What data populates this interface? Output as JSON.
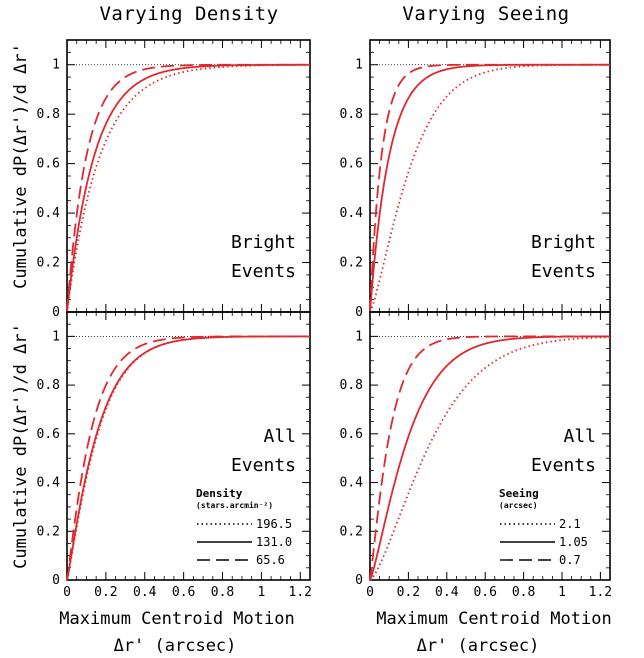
{
  "chart_data": [
    {
      "type": "line",
      "panel": "top-left",
      "title": "Varying Density",
      "ylabel": "Cumulative dP(Δr')/d Δr'",
      "xlabel": "",
      "annotation": [
        "Bright",
        "Events"
      ],
      "xlim": [
        0,
        1.25
      ],
      "ylim": [
        0,
        1.1
      ],
      "x_ticks": [],
      "y_ticks": [
        "0",
        "0.2",
        "0.4",
        "0.6",
        "0.8",
        "1"
      ],
      "reference_line": 1,
      "series": [
        {
          "style": "dotted",
          "color": "#e0282e",
          "scale": 0.17
        },
        {
          "style": "solid",
          "color": "#e0282e",
          "scale": 0.14
        },
        {
          "style": "dashed",
          "color": "#e0282e",
          "scale": 0.1
        }
      ]
    },
    {
      "type": "line",
      "panel": "top-right",
      "title": "Varying Seeing",
      "ylabel": "",
      "xlabel": "",
      "annotation": [
        "Bright",
        "Events"
      ],
      "xlim": [
        0,
        1.25
      ],
      "ylim": [
        0,
        1.1
      ],
      "x_ticks": [],
      "y_ticks": [
        "0",
        "0.2",
        "0.4",
        "0.6",
        "0.8",
        "1"
      ],
      "reference_line": 1,
      "series": [
        {
          "style": "dotted",
          "color": "#e0282e",
          "scale": 0.23,
          "shape": 1.3
        },
        {
          "style": "solid",
          "color": "#e0282e",
          "scale": 0.1
        },
        {
          "style": "dashed",
          "color": "#e0282e",
          "scale": 0.06
        }
      ]
    },
    {
      "type": "line",
      "panel": "bottom-left",
      "title": "",
      "ylabel": "Cumulative dP(Δr')/d Δr'",
      "xlabel": "Maximum Centroid Motion",
      "xlabel2": "Δr' (arcsec)",
      "annotation": [
        "All",
        "Events"
      ],
      "xlim": [
        0,
        1.25
      ],
      "ylim": [
        0,
        1.1
      ],
      "x_ticks": [
        "0",
        "0.2",
        "0.4",
        "0.6",
        "0.8",
        "1",
        "1.2"
      ],
      "y_ticks": [
        "0",
        "0.2",
        "0.4",
        "0.6",
        "0.8",
        "1"
      ],
      "reference_line": 1,
      "legend": {
        "title": "Density",
        "subtitle": "(stars.arcmin⁻²)",
        "entries": [
          {
            "style": "dotted",
            "label": "196.5"
          },
          {
            "style": "solid",
            "label": "131.0"
          },
          {
            "style": "dashed",
            "label": "65.6"
          }
        ]
      },
      "series": [
        {
          "style": "dotted",
          "name": "196.5",
          "color": "#e0282e",
          "scale": 0.17,
          "shape": 1.15
        },
        {
          "style": "solid",
          "name": "131.0",
          "color": "#e0282e",
          "scale": 0.165,
          "shape": 1.12
        },
        {
          "style": "dashed",
          "name": "65.6",
          "color": "#e0282e",
          "scale": 0.13,
          "shape": 1.1
        }
      ]
    },
    {
      "type": "line",
      "panel": "bottom-right",
      "title": "",
      "ylabel": "",
      "xlabel": "Maximum Centroid Motion",
      "xlabel2": "Δr' (arcsec)",
      "annotation": [
        "All",
        "Events"
      ],
      "xlim": [
        0,
        1.25
      ],
      "ylim": [
        0,
        1.1
      ],
      "x_ticks": [
        "0",
        "0.2",
        "0.4",
        "0.6",
        "0.8",
        "1",
        "1.2"
      ],
      "y_ticks": [
        "0",
        "0.2",
        "0.4",
        "0.6",
        "0.8",
        "1"
      ],
      "reference_line": 1,
      "legend": {
        "title": "Seeing",
        "subtitle": "(arcsec)",
        "entries": [
          {
            "style": "dotted",
            "label": "2.1"
          },
          {
            "style": "solid",
            "label": "1.05"
          },
          {
            "style": "dashed",
            "label": "0.7"
          }
        ]
      },
      "series": [
        {
          "style": "dotted",
          "name": "2.1",
          "color": "#e0282e",
          "scale": 0.36,
          "shape": 1.4
        },
        {
          "style": "solid",
          "name": "1.05",
          "color": "#e0282e",
          "scale": 0.22,
          "shape": 1.25
        },
        {
          "style": "dashed",
          "name": "0.7",
          "color": "#e0282e",
          "scale": 0.11,
          "shape": 1.15
        }
      ]
    }
  ]
}
